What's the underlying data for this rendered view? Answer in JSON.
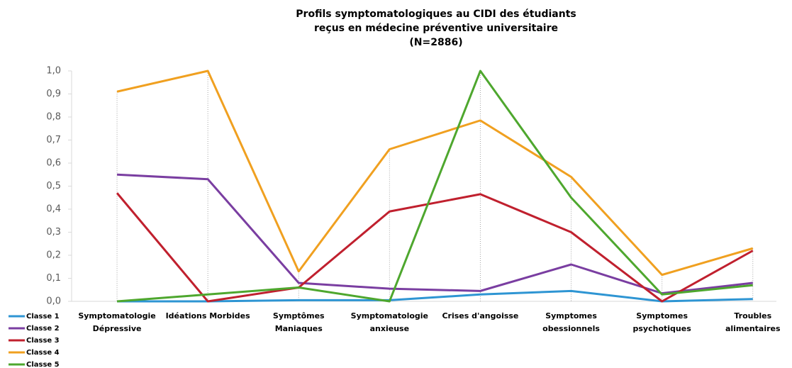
{
  "chart_data": {
    "type": "line",
    "title": [
      "Profils symptomatologiques au CIDI des étudiants",
      "reçus en médecine préventive universitaire",
      "(N=2886)"
    ],
    "categories": [
      [
        "Symptomatologie",
        "Dépressive"
      ],
      [
        "Idéations Morbides"
      ],
      [
        "Symptômes",
        "Maniaques"
      ],
      [
        "Symptomatologie",
        "anxieuse"
      ],
      [
        "Crises d'angoisse"
      ],
      [
        "Symptomes",
        "obessionnels"
      ],
      [
        "Symptomes",
        "psychotiques"
      ],
      [
        "Troubles",
        "alimentaires"
      ]
    ],
    "series": [
      {
        "name": "Classe 1",
        "color": "#2e95d3",
        "values": [
          0,
          0,
          0.005,
          0.005,
          0.03,
          0.045,
          0,
          0.01
        ]
      },
      {
        "name": "Classe 2",
        "color": "#7a3ea1",
        "values": [
          0.55,
          0.53,
          0.08,
          0.055,
          0.045,
          0.16,
          0.035,
          0.08
        ]
      },
      {
        "name": "Classe 3",
        "color": "#c0202e",
        "values": [
          0.47,
          0,
          0.06,
          0.39,
          0.465,
          0.3,
          0,
          0.22
        ]
      },
      {
        "name": "Classe 4",
        "color": "#f0a020",
        "values": [
          0.91,
          1.0,
          0.13,
          0.66,
          0.785,
          0.54,
          0.115,
          0.23
        ]
      },
      {
        "name": "Classe 5",
        "color": "#4ea72e",
        "values": [
          0,
          0.03,
          0.06,
          0,
          1.0,
          0.45,
          0.03,
          0.07
        ]
      }
    ],
    "ylim": [
      0,
      1
    ],
    "yticks": [
      {
        "value": 0,
        "label": "0,0"
      },
      {
        "value": 0.1,
        "label": "0,1"
      },
      {
        "value": 0.2,
        "label": "0,2"
      },
      {
        "value": 0.3,
        "label": "0,3"
      },
      {
        "value": 0.4,
        "label": "0,4"
      },
      {
        "value": 0.5,
        "label": "0,5"
      },
      {
        "value": 0.6,
        "label": "0,6"
      },
      {
        "value": 0.7,
        "label": "0,7"
      },
      {
        "value": 0.8,
        "label": "0,8"
      },
      {
        "value": 0.9,
        "label": "0,9"
      },
      {
        "value": 1,
        "label": "1,0"
      }
    ],
    "legend": "bottom-left"
  }
}
